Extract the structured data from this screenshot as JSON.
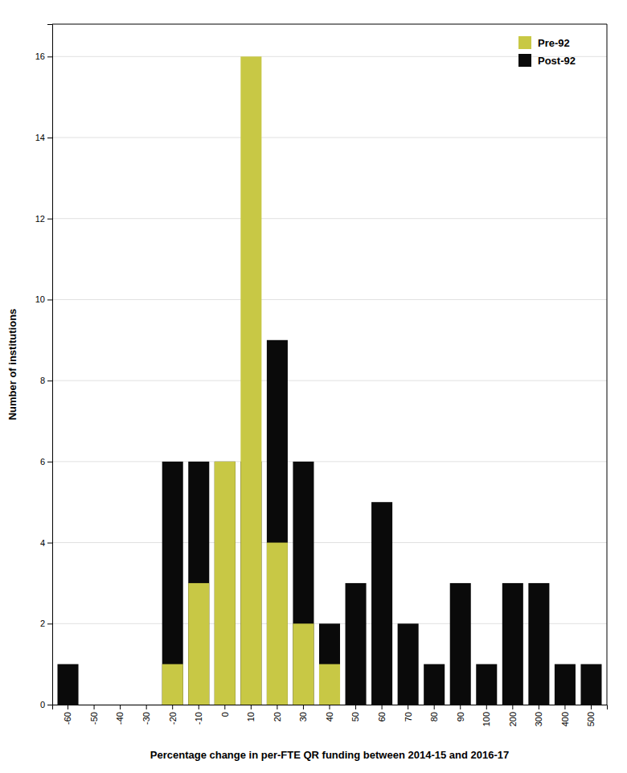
{
  "chart_data": {
    "type": "bar",
    "xlabel": "Percentage change in per-FTE QR funding between 2014-15 and 2016-17",
    "ylabel": "Number of institutions",
    "categories": [
      "-60",
      "-50",
      "-40",
      "-30",
      "-20",
      "-10",
      "0",
      "10",
      "20",
      "30",
      "40",
      "50",
      "60",
      "70",
      "80",
      "90",
      "100",
      "200",
      "300",
      "400",
      "500"
    ],
    "series": [
      {
        "name": "Pre-92",
        "color": "#c8c845",
        "values": [
          0,
          0,
          0,
          0,
          1,
          3,
          6,
          16,
          4,
          2,
          1,
          0,
          0,
          0,
          0,
          0,
          0,
          0,
          0,
          0,
          0
        ]
      },
      {
        "name": "Post-92",
        "color": "#0a0a0a",
        "values": [
          1,
          0,
          0,
          0,
          6,
          6,
          6,
          6,
          9,
          6,
          2,
          3,
          5,
          2,
          1,
          3,
          1,
          3,
          3,
          1,
          1
        ]
      }
    ],
    "stacked": false,
    "ylim": [
      0,
      16.8
    ],
    "yticks": [
      0,
      2,
      4,
      6,
      8,
      10,
      12,
      14,
      16
    ],
    "grid": true,
    "legend": "upper right"
  }
}
